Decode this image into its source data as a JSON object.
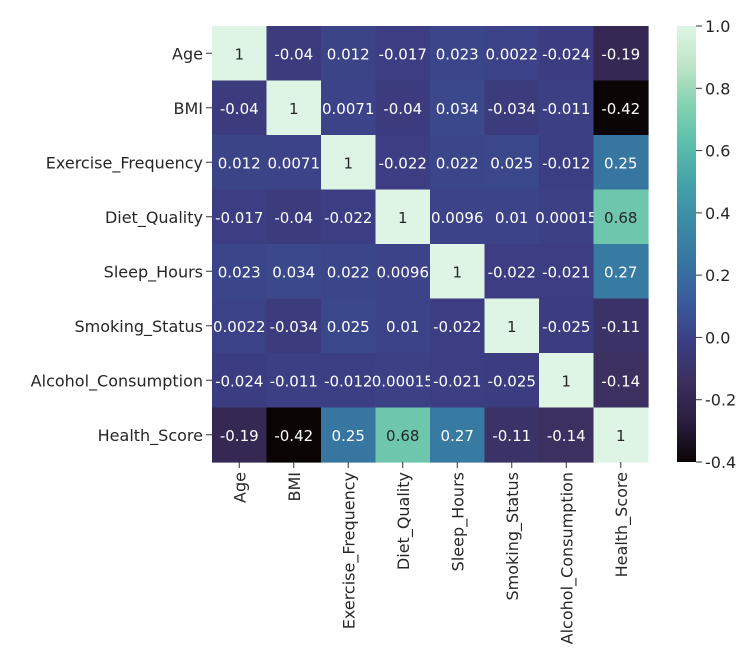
{
  "chart_data": {
    "type": "heatmap",
    "rows": [
      "Age",
      "BMI",
      "Exercise_Frequency",
      "Diet_Quality",
      "Sleep_Hours",
      "Smoking_Status",
      "Alcohol_Consumption",
      "Health_Score"
    ],
    "columns": [
      "Age",
      "BMI",
      "Exercise_Frequency",
      "Diet_Quality",
      "Sleep_Hours",
      "Smoking_Status",
      "Alcohol_Consumption",
      "Health_Score"
    ],
    "values": [
      [
        1,
        -0.04,
        0.012,
        -0.017,
        0.023,
        0.0022,
        -0.024,
        -0.19
      ],
      [
        -0.04,
        1,
        0.0071,
        -0.04,
        0.034,
        -0.034,
        -0.011,
        -0.42
      ],
      [
        0.012,
        0.0071,
        1,
        -0.022,
        0.022,
        0.025,
        -0.012,
        0.25
      ],
      [
        -0.017,
        -0.04,
        -0.022,
        1,
        0.0096,
        0.01,
        0.00015,
        0.68
      ],
      [
        0.023,
        0.034,
        0.022,
        0.0096,
        1,
        -0.022,
        -0.021,
        0.27
      ],
      [
        0.0022,
        -0.034,
        0.025,
        0.01,
        -0.022,
        1,
        -0.025,
        -0.11
      ],
      [
        -0.024,
        -0.011,
        -0.012,
        0.00015,
        -0.021,
        -0.025,
        1,
        -0.14
      ],
      [
        -0.19,
        -0.42,
        0.25,
        0.68,
        0.27,
        -0.11,
        -0.14,
        1
      ]
    ],
    "labels": [
      [
        "1",
        "-0.04",
        "0.012",
        "-0.017",
        "0.023",
        "0.0022",
        "-0.024",
        "-0.19"
      ],
      [
        "-0.04",
        "1",
        "0.0071",
        "-0.04",
        "0.034",
        "-0.034",
        "-0.011",
        "-0.42"
      ],
      [
        "0.012",
        "0.0071",
        "1",
        "-0.022",
        "0.022",
        "0.025",
        "-0.012",
        "0.25"
      ],
      [
        "-0.017",
        "-0.04",
        "-0.022",
        "1",
        "0.0096",
        "0.01",
        "0.00015",
        "0.68"
      ],
      [
        "0.023",
        "0.034",
        "0.022",
        "0.0096",
        "1",
        "-0.022",
        "-0.021",
        "0.27"
      ],
      [
        "0.0022",
        "-0.034",
        "0.025",
        "0.01",
        "-0.022",
        "1",
        "-0.025",
        "-0.11"
      ],
      [
        "-0.024",
        "-0.011",
        "-0.012",
        "0.00015",
        "-0.021",
        "-0.025",
        "1",
        "-0.14"
      ],
      [
        "-0.19",
        "-0.42",
        "0.25",
        "0.68",
        "0.27",
        "-0.11",
        "-0.14",
        "1"
      ]
    ],
    "colorbar": {
      "min": -0.4,
      "max": 1.0,
      "ticks": [
        1.0,
        0.8,
        0.6,
        0.4,
        0.2,
        0.0,
        -0.2,
        -0.4
      ],
      "tick_labels": [
        "1.0",
        "0.8",
        "0.6",
        "0.4",
        "0.2",
        "0.0",
        "-0.2",
        "-0.4"
      ]
    },
    "colormap": "mako",
    "colormap_stops": [
      "#0b0405",
      "#2a1d3f",
      "#3b2f5e",
      "#3c3d83",
      "#3a5a9a",
      "#3674a1",
      "#3a8aa5",
      "#44a1aa",
      "#5bbdab",
      "#83d2b0",
      "#bfe5c6",
      "#def5e5"
    ],
    "title": "",
    "xlabel": "",
    "ylabel": ""
  }
}
